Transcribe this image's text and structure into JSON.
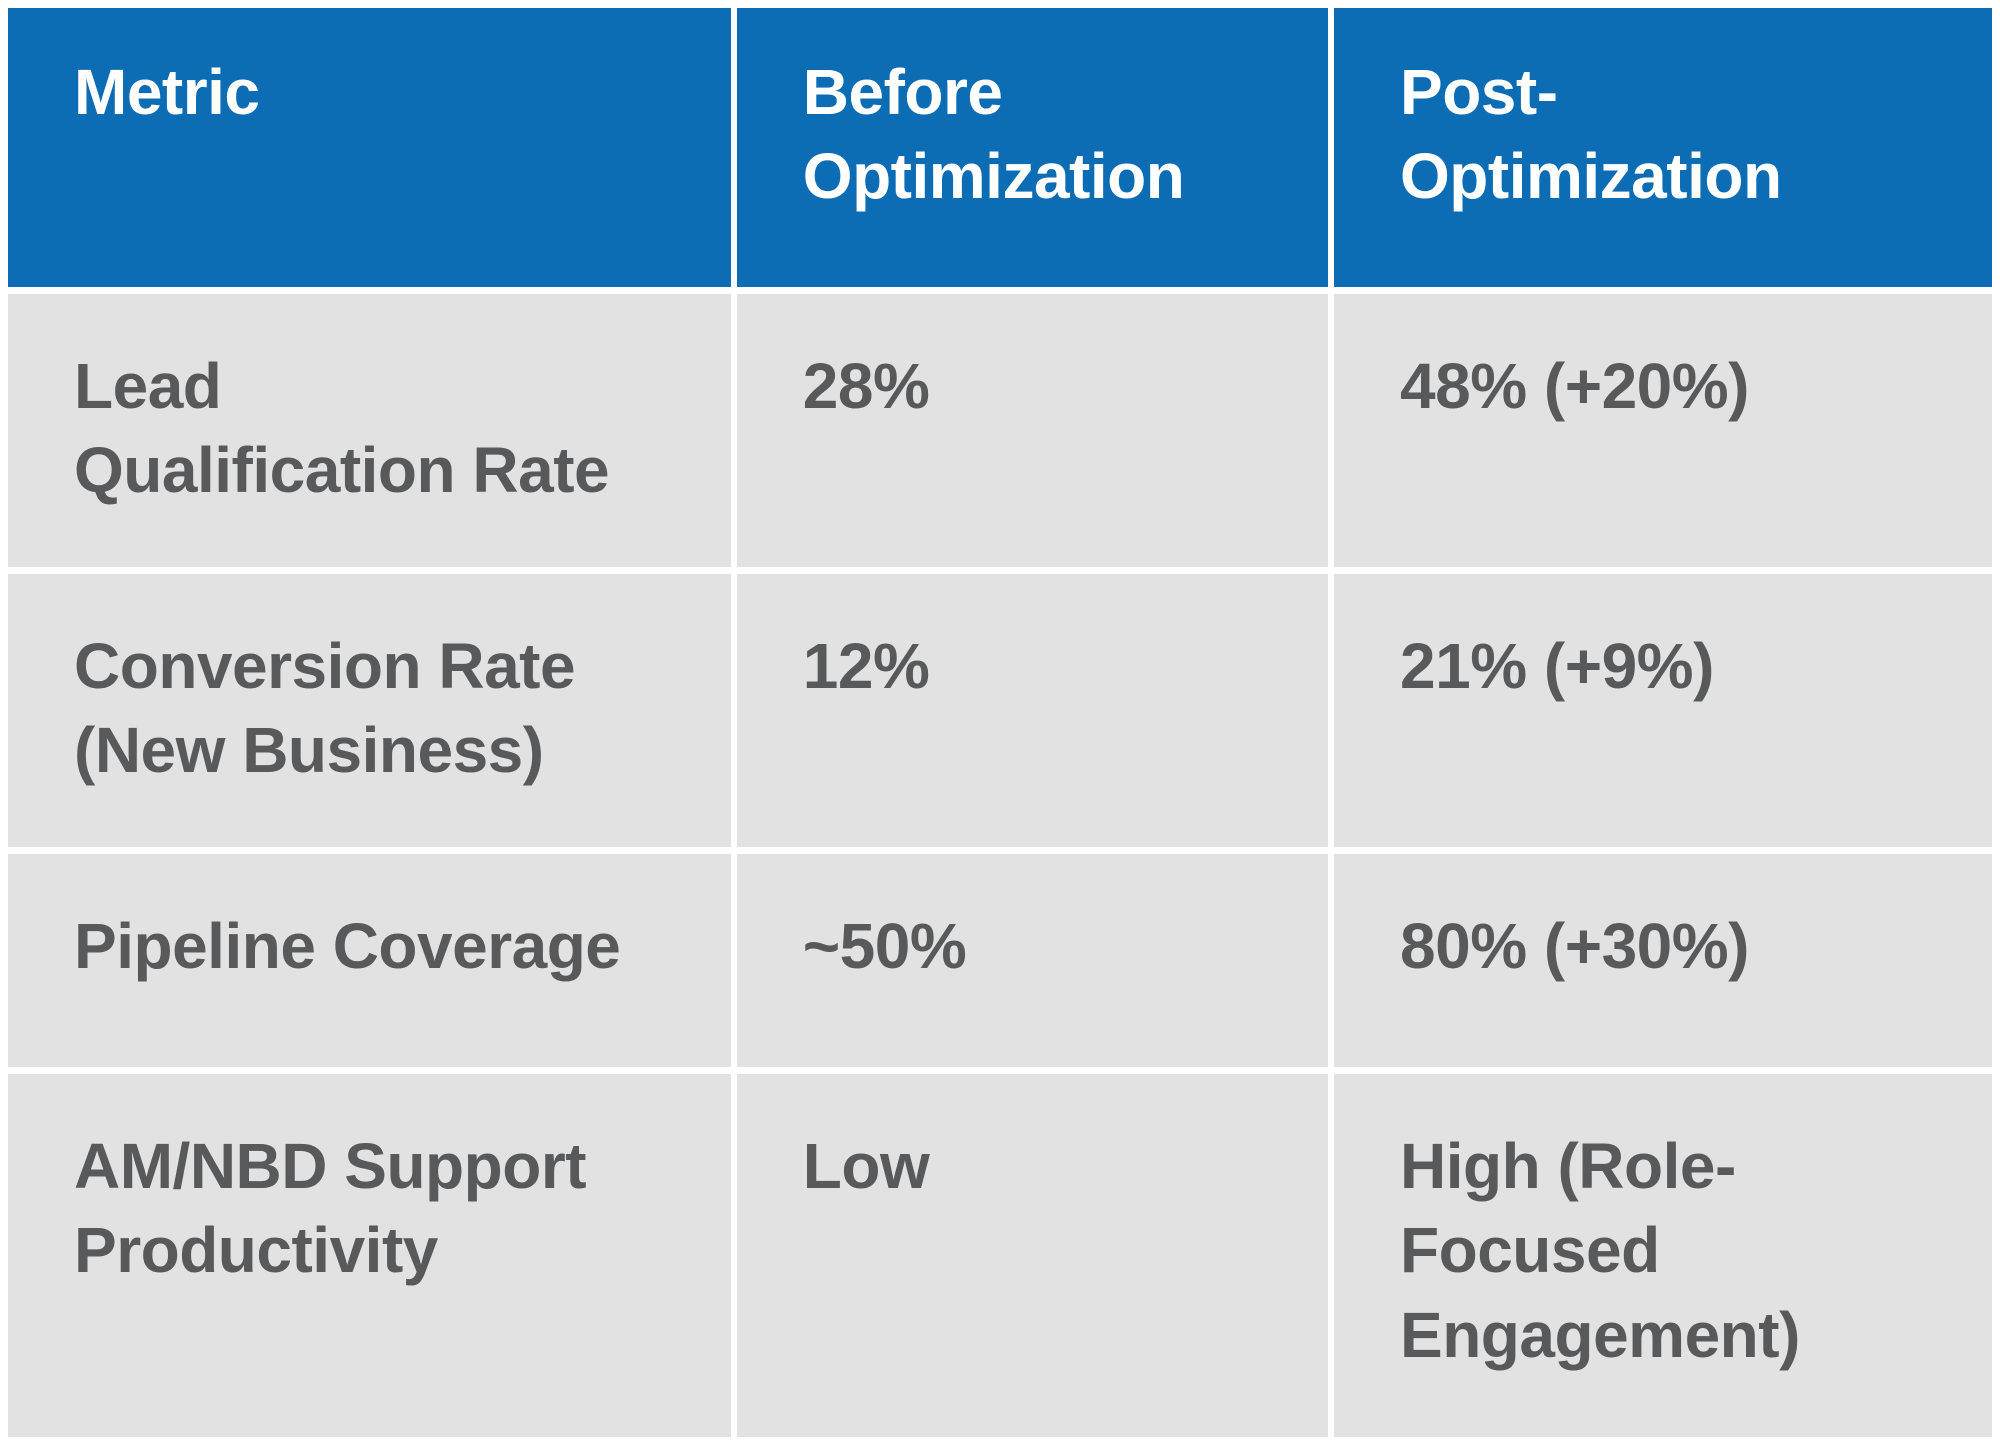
{
  "colors": {
    "header_bg": "#0C6CB4",
    "header_text": "#FFFFFF",
    "body_bg": "#E2E2E2",
    "body_text": "#58595B",
    "gridline": "#FFFFFF"
  },
  "table": {
    "header": {
      "metric": "Metric",
      "before": "Before\nOptimization",
      "post": "Post-\nOptimization"
    },
    "rows": [
      {
        "metric": "Lead\nQualification Rate",
        "before": "28%",
        "post": "48% (+20%)"
      },
      {
        "metric": "Conversion Rate\n(New Business)",
        "before": "12%",
        "post": "21% (+9%)"
      },
      {
        "metric": "Pipeline Coverage",
        "before": "~50%",
        "post": "80% (+30%)"
      },
      {
        "metric": "AM/NBD Support\nProductivity",
        "before": "Low",
        "post": "High (Role-\nFocused\nEngagement)"
      }
    ]
  },
  "chart_data": {
    "type": "table",
    "columns": [
      "Metric",
      "Before Optimization",
      "Post-Optimization"
    ],
    "rows": [
      [
        "Lead Qualification Rate",
        "28%",
        "48% (+20%)"
      ],
      [
        "Conversion Rate (New Business)",
        "12%",
        "21% (+9%)"
      ],
      [
        "Pipeline Coverage",
        "~50%",
        "80% (+30%)"
      ],
      [
        "AM/NBD Support Productivity",
        "Low",
        "High (Role-Focused Engagement)"
      ]
    ],
    "notes": {
      "legend_position": "none",
      "grid": "white gridlines on gray body, blue header row"
    }
  }
}
